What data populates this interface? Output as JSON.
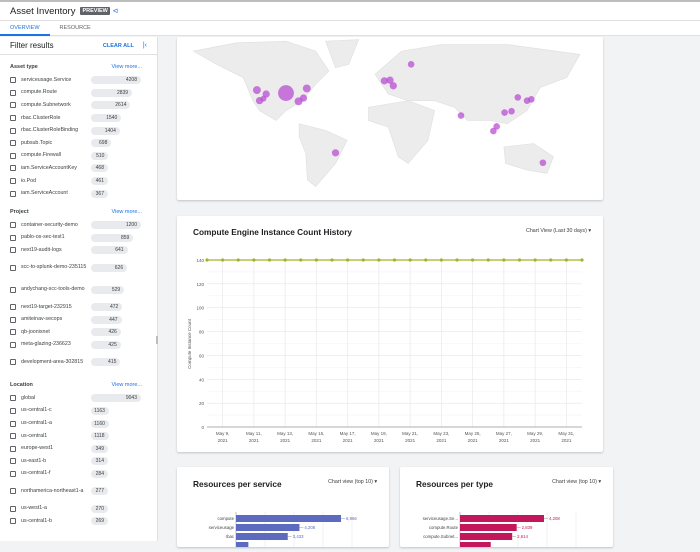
{
  "header": {
    "title": "Asset Inventory",
    "badge": "PREVIEW",
    "share_icon": "share-icon"
  },
  "tabs": [
    {
      "label": "OVERVIEW",
      "active": true
    },
    {
      "label": "RESOURCE",
      "active": false
    }
  ],
  "sidebar": {
    "title": "Filter results",
    "clear_all": "CLEAR ALL",
    "collapse_icon": "collapse-icon",
    "groups": [
      {
        "label": "Asset type",
        "view_more": "View more...",
        "items": [
          {
            "label": "serviceusage.Service",
            "count": 4208
          },
          {
            "label": "compute.Route",
            "count": 2839
          },
          {
            "label": "compute.Subnetwork",
            "count": 2614
          },
          {
            "label": "rbac.ClusterRole",
            "count": 1540
          },
          {
            "label": "rbac.ClusterRoleBinding",
            "count": 1404
          },
          {
            "label": "pubsub.Topic",
            "count": 698
          },
          {
            "label": "compute.Firewall",
            "count": 510
          },
          {
            "label": "iam.ServiceAccountKey",
            "count": 468
          },
          {
            "label": "io.Pod",
            "count": 461
          },
          {
            "label": "iam.ServiceAccount",
            "count": 367
          }
        ]
      },
      {
        "label": "Project",
        "view_more": "View more...",
        "items": [
          {
            "label": "container-security-demo",
            "count": 1200
          },
          {
            "label": "pablo-os-sec-test1",
            "count": 859
          },
          {
            "label": "next19-audit-logs",
            "count": 641
          },
          {
            "label": "scc-to-splunk-demo-235115",
            "count": 626
          },
          {
            "label": "andychang-scc-tools-demo",
            "count": 529
          },
          {
            "label": "next19-target-232915",
            "count": 472
          },
          {
            "label": "amiteinav-secops",
            "count": 447
          },
          {
            "label": "qb-joonixnet",
            "count": 426
          },
          {
            "label": "meta-glazing-236623",
            "count": 425
          },
          {
            "label": "development-area-302815",
            "count": 415
          }
        ]
      },
      {
        "label": "Location",
        "view_more": "View more...",
        "items": [
          {
            "label": "global",
            "count": 9043
          },
          {
            "label": "us-central1-c",
            "count": 1163
          },
          {
            "label": "us-central1-a",
            "count": 1160
          },
          {
            "label": "us-central1",
            "count": 1118
          },
          {
            "label": "europe-west1",
            "count": 349
          },
          {
            "label": "us-east1-b",
            "count": 314
          },
          {
            "label": "us-central1-f",
            "count": 284
          },
          {
            "label": "northamerica-northeast1-a",
            "count": 277
          },
          {
            "label": "us-west1-a",
            "count": 270
          },
          {
            "label": "us-central1-b",
            "count": 269
          }
        ]
      }
    ]
  },
  "colors": {
    "accent": "#1a73e8",
    "map_marker": "#b84fd1",
    "line": "#a4b22a",
    "service_bar": "#5c6bc0",
    "type_bar": "#c2185b"
  },
  "chart_data": [
    {
      "type": "line",
      "title": "Compute Engine Instance Count History",
      "view_selector": "Chart View (Last 30 days)",
      "ylabel": "Compute Instance Count",
      "xlabel": "",
      "ylim": [
        0,
        140
      ],
      "yticks": [
        0,
        20,
        40,
        60,
        80,
        100,
        120,
        140
      ],
      "grid": true,
      "xtick_labels": [
        [
          "May 9,",
          "2021"
        ],
        [
          "May 11,",
          "2021"
        ],
        [
          "May 13,",
          "2021"
        ],
        [
          "May 15,",
          "2021"
        ],
        [
          "May 17,",
          "2021"
        ],
        [
          "May 19,",
          "2021"
        ],
        [
          "May 21,",
          "2021"
        ],
        [
          "May 23,",
          "2021"
        ],
        [
          "May 25,",
          "2021"
        ],
        [
          "May 27,",
          "2021"
        ],
        [
          "May 29,",
          "2021"
        ],
        [
          "May 31,",
          "2021"
        ]
      ],
      "x": [
        "2021-05-08",
        "2021-05-09",
        "2021-05-10",
        "2021-05-11",
        "2021-05-12",
        "2021-05-13",
        "2021-05-14",
        "2021-05-15",
        "2021-05-16",
        "2021-05-17",
        "2021-05-18",
        "2021-05-19",
        "2021-05-20",
        "2021-05-21",
        "2021-05-22",
        "2021-05-23",
        "2021-05-24",
        "2021-05-25",
        "2021-05-26",
        "2021-05-27",
        "2021-05-28",
        "2021-05-29",
        "2021-05-30",
        "2021-05-31",
        "2021-06-01"
      ],
      "values": [
        140,
        140,
        140,
        140,
        140,
        140,
        140,
        140,
        140,
        140,
        140,
        140,
        140,
        140,
        140,
        140,
        140,
        140,
        140,
        140,
        140,
        140,
        140,
        140,
        140
      ]
    },
    {
      "type": "bar",
      "orientation": "horizontal",
      "title": "Resources per service",
      "view_selector": "Chart view (top 10)",
      "categories": [
        "compute",
        "serviceusage",
        "rbac",
        ""
      ],
      "values": [
        6966,
        4208,
        3433,
        820
      ],
      "value_labels": [
        "6,966",
        "4,208",
        "3,433",
        ""
      ]
    },
    {
      "type": "bar",
      "orientation": "horizontal",
      "title": "Resources per type",
      "view_selector": "Chart view (top 10)",
      "categories": [
        "serviceusage.Se...",
        "compute.Route",
        "compute.Subnet...",
        ""
      ],
      "values": [
        4208,
        2839,
        2614,
        1540
      ],
      "value_labels": [
        "4,208",
        "2,839",
        "2,614",
        ""
      ]
    }
  ]
}
